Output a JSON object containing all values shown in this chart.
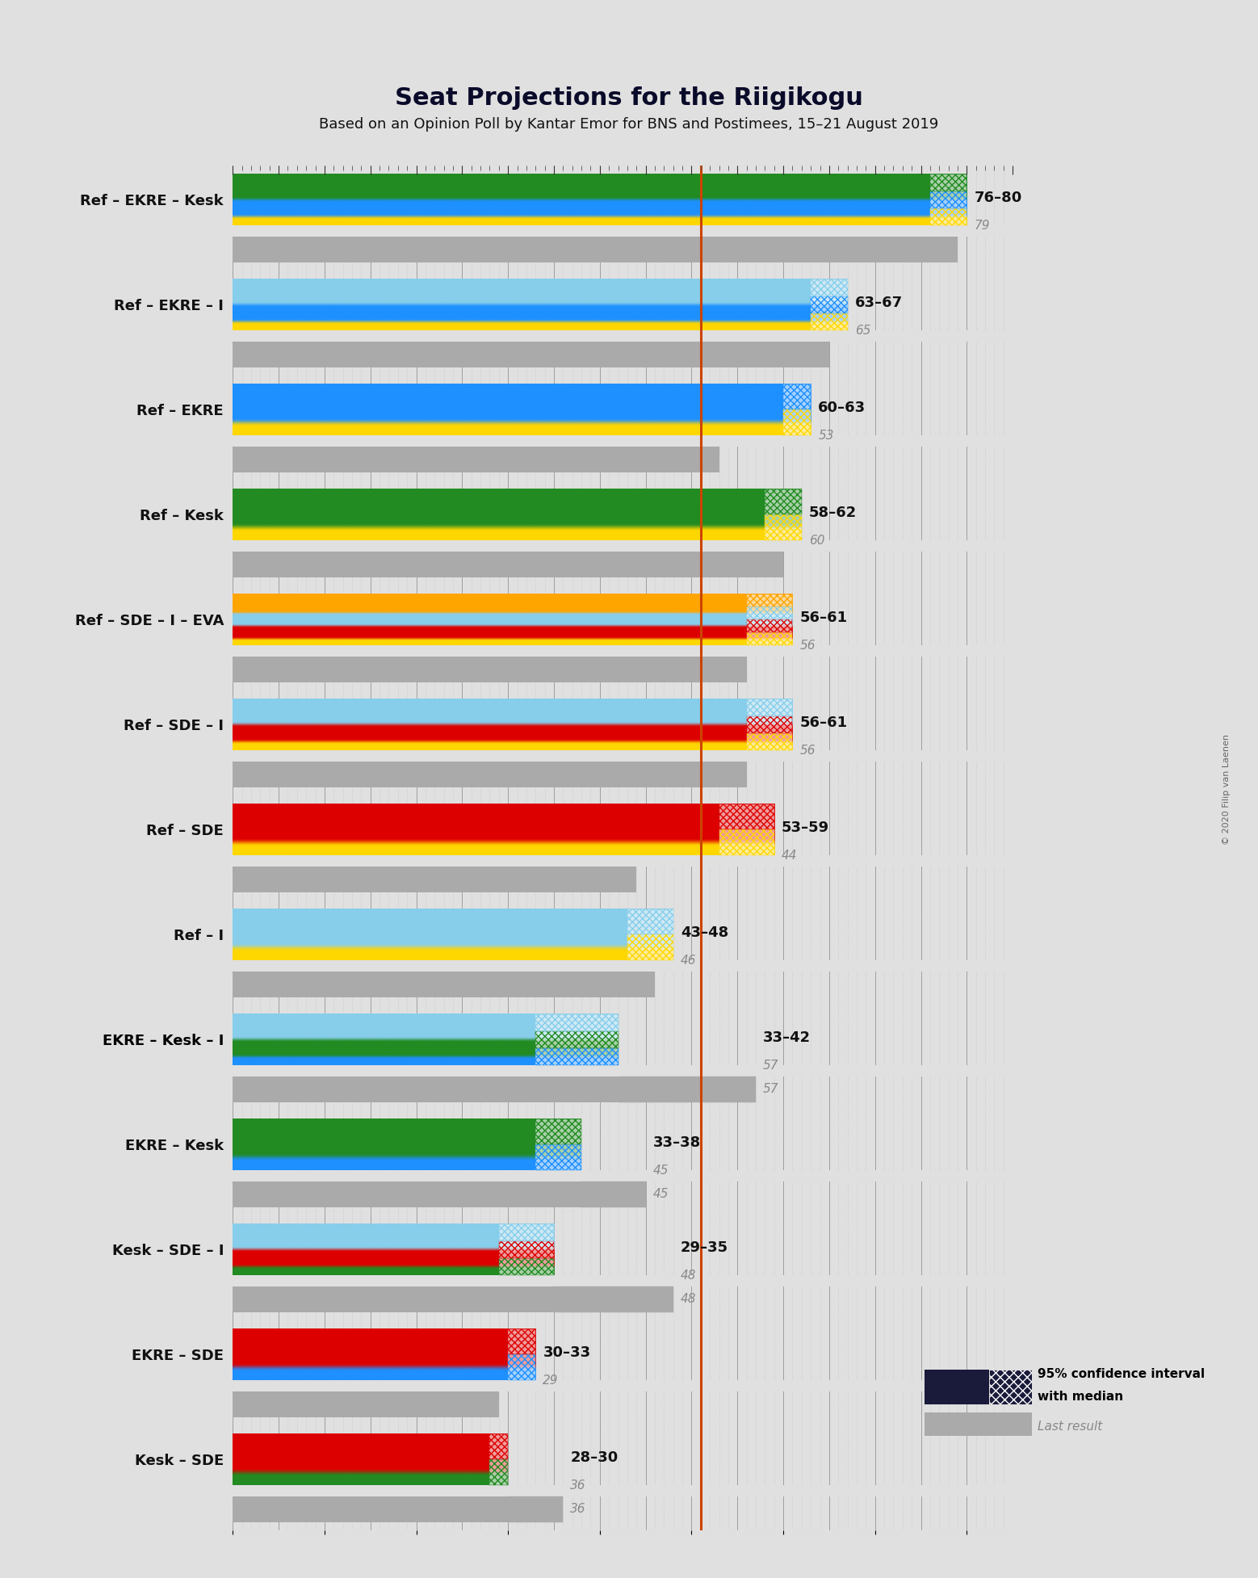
{
  "title": "Seat Projections for the Riigikogu",
  "subtitle": "Based on an Opinion Poll by Kantar Emor for BNS and Postimees, 15–21 August 2019",
  "background_color": "#e0e0e0",
  "majority_line": 51,
  "majority_line_color": "#cc4400",
  "coalitions": [
    {
      "label": "Ref – EKRE – Kesk",
      "ci_low": 76,
      "ci_high": 80,
      "median": 79,
      "last_result": 79,
      "parties": [
        "Ref",
        "EKRE",
        "Kesk"
      ],
      "underline": false
    },
    {
      "label": "Ref – EKRE – I",
      "ci_low": 63,
      "ci_high": 67,
      "median": 65,
      "last_result": 65,
      "parties": [
        "Ref",
        "EKRE",
        "I"
      ],
      "underline": false
    },
    {
      "label": "Ref – EKRE",
      "ci_low": 60,
      "ci_high": 63,
      "median": 53,
      "last_result": 53,
      "parties": [
        "Ref",
        "EKRE"
      ],
      "underline": false
    },
    {
      "label": "Ref – Kesk",
      "ci_low": 58,
      "ci_high": 62,
      "median": 60,
      "last_result": 60,
      "parties": [
        "Ref",
        "Kesk"
      ],
      "underline": false
    },
    {
      "label": "Ref – SDE – I – EVA",
      "ci_low": 56,
      "ci_high": 61,
      "median": 56,
      "last_result": 56,
      "parties": [
        "Ref",
        "SDE",
        "I",
        "EVA"
      ],
      "underline": false
    },
    {
      "label": "Ref – SDE – I",
      "ci_low": 56,
      "ci_high": 61,
      "median": 56,
      "last_result": 56,
      "parties": [
        "Ref",
        "SDE",
        "I"
      ],
      "underline": false
    },
    {
      "label": "Ref – SDE",
      "ci_low": 53,
      "ci_high": 59,
      "median": 44,
      "last_result": 44,
      "parties": [
        "Ref",
        "SDE"
      ],
      "underline": false
    },
    {
      "label": "Ref – I",
      "ci_low": 43,
      "ci_high": 48,
      "median": 46,
      "last_result": 46,
      "parties": [
        "Ref",
        "I"
      ],
      "underline": false
    },
    {
      "label": "EKRE – Kesk – I",
      "ci_low": 33,
      "ci_high": 42,
      "median": 57,
      "last_result": 57,
      "parties": [
        "EKRE",
        "Kesk",
        "I"
      ],
      "underline": true
    },
    {
      "label": "EKRE – Kesk",
      "ci_low": 33,
      "ci_high": 38,
      "median": 45,
      "last_result": 45,
      "parties": [
        "EKRE",
        "Kesk"
      ],
      "underline": false
    },
    {
      "label": "Kesk – SDE – I",
      "ci_low": 29,
      "ci_high": 35,
      "median": 48,
      "last_result": 48,
      "parties": [
        "Kesk",
        "SDE",
        "I"
      ],
      "underline": false
    },
    {
      "label": "EKRE – SDE",
      "ci_low": 30,
      "ci_high": 33,
      "median": 29,
      "last_result": 29,
      "parties": [
        "EKRE",
        "SDE"
      ],
      "underline": false
    },
    {
      "label": "Kesk – SDE",
      "ci_low": 28,
      "ci_high": 30,
      "median": 36,
      "last_result": 36,
      "parties": [
        "Kesk",
        "SDE"
      ],
      "underline": false
    }
  ],
  "party_colors": {
    "Ref": "#FFD700",
    "EKRE": "#1E90FF",
    "Kesk": "#228B22",
    "SDE": "#DD0000",
    "I": "#87CEEB",
    "EVA": "#FFA500"
  },
  "xmin": 0,
  "xmax": 85,
  "gray_bar_color": "#aaaaaa",
  "dotted_bg_color": "#cccccc",
  "copyright": "© 2020 Filip van Laenen"
}
